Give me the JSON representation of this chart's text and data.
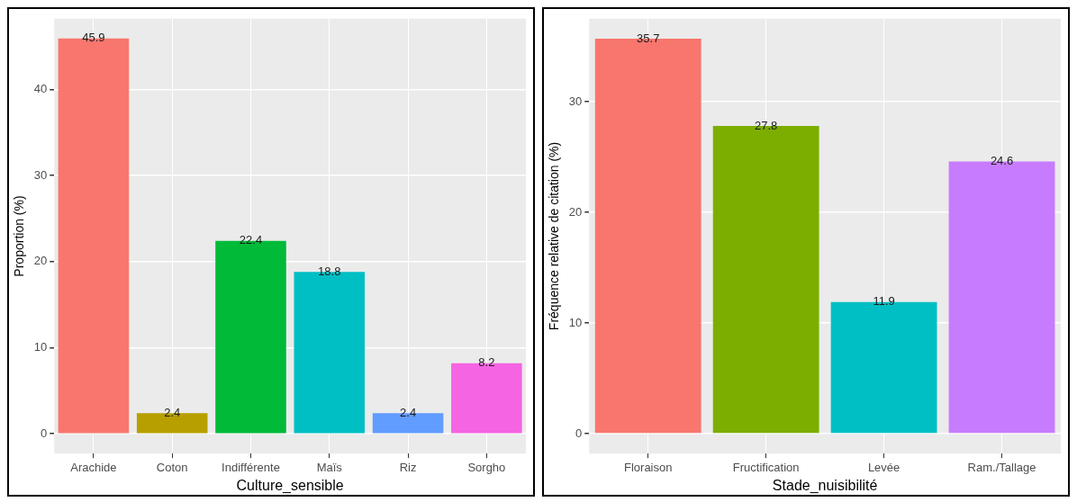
{
  "chart_data": [
    {
      "type": "bar",
      "xlabel": "Culture_sensible",
      "ylabel": "Proportion (%)",
      "categories": [
        "Arachide",
        "Coton",
        "Indifférente",
        "Maïs",
        "Riz",
        "Sorgho"
      ],
      "values": [
        45.9,
        2.4,
        22.4,
        18.8,
        2.4,
        8.2
      ],
      "colors": [
        "#f8766d",
        "#b79f00",
        "#00ba38",
        "#00bfc4",
        "#619cff",
        "#f564e3"
      ],
      "ylim": [
        -2.3,
        48.2
      ],
      "yticks": [
        0,
        10,
        20,
        30,
        40
      ],
      "grid": true,
      "data_labels": true,
      "legend": false
    },
    {
      "type": "bar",
      "xlabel": "Stade_nuisibilité",
      "ylabel": "Fréquence relative de citation (%)",
      "categories": [
        "Floraison",
        "Fructification",
        "Levée",
        "Ram./Tallage"
      ],
      "values": [
        35.7,
        27.8,
        11.9,
        24.6
      ],
      "colors": [
        "#f8766d",
        "#7cae00",
        "#00bfc4",
        "#c77cff"
      ],
      "ylim": [
        -1.8,
        37.5
      ],
      "yticks": [
        0,
        10,
        20,
        30
      ],
      "grid": true,
      "data_labels": true,
      "legend": false
    }
  ]
}
